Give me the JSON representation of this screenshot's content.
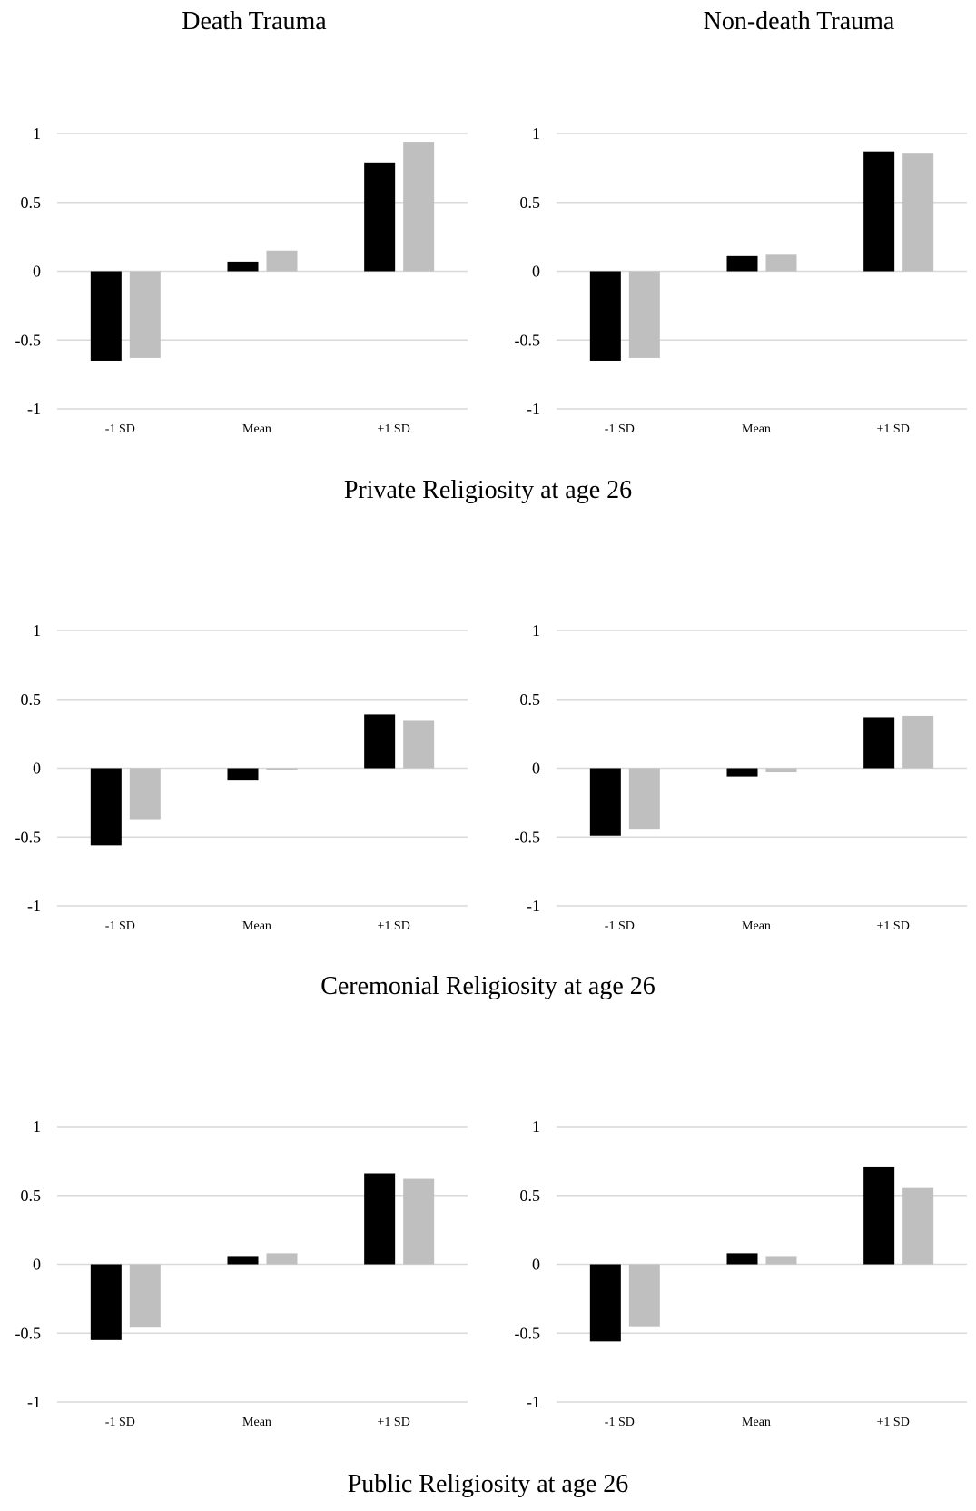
{
  "column_titles": [
    "Death Trauma",
    "Non-death Trauma"
  ],
  "row_captions": [
    "Private Religiosity at age 26",
    "Ceremonial Religiosity at age 26",
    "Public Religiosity at age 26"
  ],
  "colors": {
    "series_1": "#000000",
    "series_2": "#bfbfbf",
    "grid": "#d9d9d9"
  },
  "chart_data": [
    {
      "type": "bar",
      "row": 0,
      "col": 0,
      "categories": [
        "-1 SD",
        "Mean",
        "+1 SD"
      ],
      "ylim": [
        -1,
        1
      ],
      "yticks": [
        1,
        0.5,
        0,
        -0.5,
        -1
      ],
      "grid": true,
      "legend": "none",
      "series": [
        {
          "values": [
            -0.65,
            0.07,
            0.79
          ]
        },
        {
          "values": [
            -0.63,
            0.15,
            0.94
          ]
        }
      ]
    },
    {
      "type": "bar",
      "row": 0,
      "col": 1,
      "categories": [
        "-1 SD",
        "Mean",
        "+1 SD"
      ],
      "ylim": [
        -1,
        1
      ],
      "yticks": [
        1,
        0.5,
        0,
        -0.5,
        -1
      ],
      "grid": true,
      "legend": "none",
      "series": [
        {
          "values": [
            -0.65,
            0.11,
            0.87
          ]
        },
        {
          "values": [
            -0.63,
            0.12,
            0.86
          ]
        }
      ]
    },
    {
      "type": "bar",
      "row": 1,
      "col": 0,
      "categories": [
        "-1 SD",
        "Mean",
        "+1 SD"
      ],
      "ylim": [
        -1,
        1
      ],
      "yticks": [
        1,
        0.5,
        0,
        -0.5,
        -1
      ],
      "grid": true,
      "legend": "none",
      "series": [
        {
          "values": [
            -0.56,
            -0.09,
            0.39
          ]
        },
        {
          "values": [
            -0.37,
            -0.01,
            0.35
          ]
        }
      ]
    },
    {
      "type": "bar",
      "row": 1,
      "col": 1,
      "categories": [
        "-1 SD",
        "Mean",
        "+1 SD"
      ],
      "ylim": [
        -1,
        1
      ],
      "yticks": [
        1,
        0.5,
        0,
        -0.5,
        -1
      ],
      "grid": true,
      "legend": "none",
      "series": [
        {
          "values": [
            -0.49,
            -0.06,
            0.37
          ]
        },
        {
          "values": [
            -0.44,
            -0.03,
            0.38
          ]
        }
      ]
    },
    {
      "type": "bar",
      "row": 2,
      "col": 0,
      "categories": [
        "-1 SD",
        "Mean",
        "+1 SD"
      ],
      "ylim": [
        -1,
        1
      ],
      "yticks": [
        1,
        0.5,
        0,
        -0.5,
        -1
      ],
      "grid": true,
      "legend": "none",
      "series": [
        {
          "values": [
            -0.55,
            0.06,
            0.66
          ]
        },
        {
          "values": [
            -0.46,
            0.08,
            0.62
          ]
        }
      ]
    },
    {
      "type": "bar",
      "row": 2,
      "col": 1,
      "categories": [
        "-1 SD",
        "Mean",
        "+1 SD"
      ],
      "ylim": [
        -1,
        1
      ],
      "yticks": [
        1,
        0.5,
        0,
        -0.5,
        -1
      ],
      "grid": true,
      "legend": "none",
      "series": [
        {
          "values": [
            -0.56,
            0.08,
            0.71
          ]
        },
        {
          "values": [
            -0.45,
            0.06,
            0.56
          ]
        }
      ]
    }
  ]
}
